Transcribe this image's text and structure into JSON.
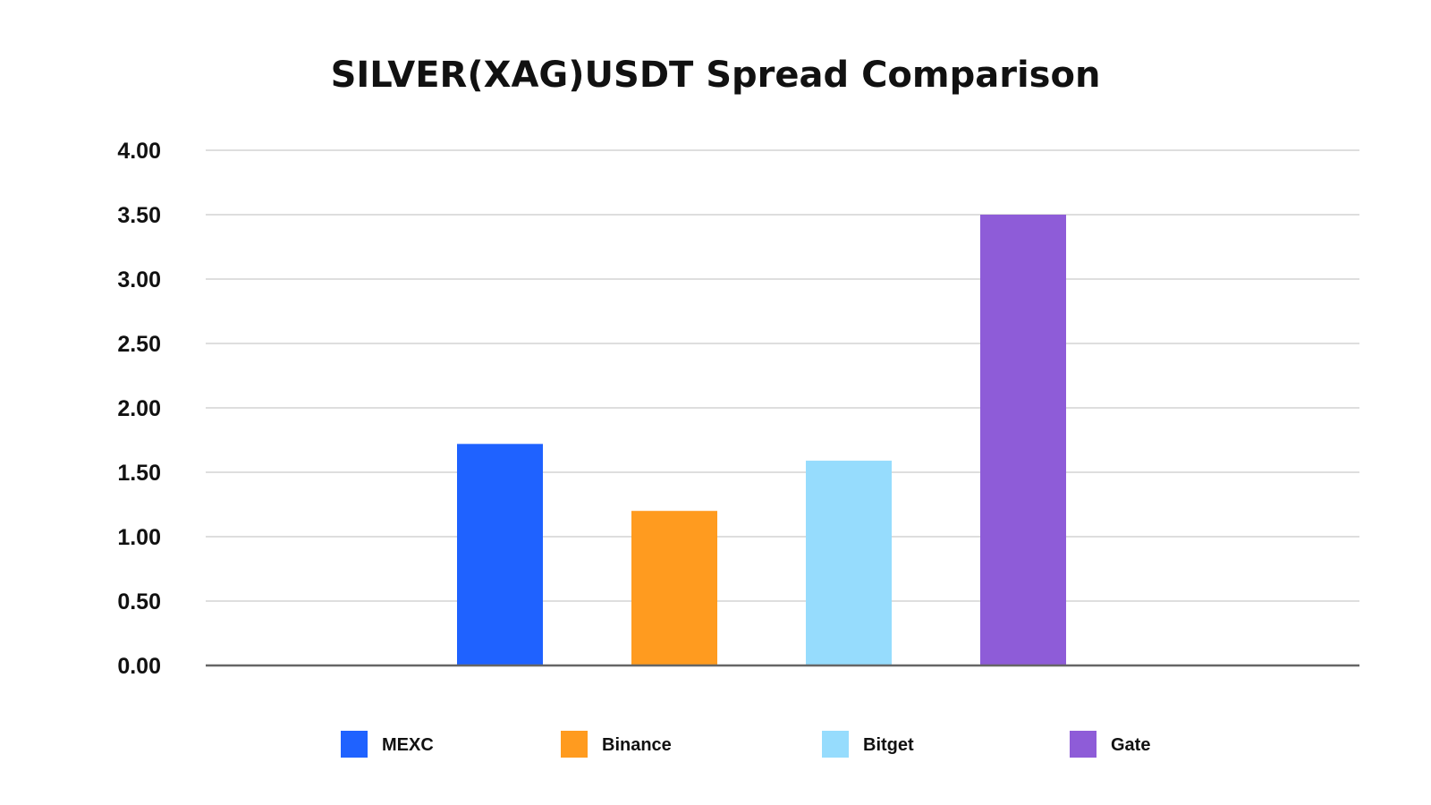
{
  "chart_data": {
    "type": "bar",
    "title": "SILVER(XAG)USDT Spread Comparison",
    "xlabel": "",
    "ylabel": "",
    "ylim": [
      0,
      4
    ],
    "ytick_step": 0.5,
    "ytick_labels": [
      "0.00",
      "0.50",
      "1.00",
      "1.50",
      "2.00",
      "2.50",
      "3.00",
      "3.50",
      "4.00"
    ],
    "grid": true,
    "legend_position": "bottom",
    "series": [
      {
        "name": "MEXC",
        "value": 1.72,
        "color": "#1f62ff"
      },
      {
        "name": "Binance",
        "value": 1.2,
        "color": "#ff9b1f"
      },
      {
        "name": "Bitget",
        "value": 1.59,
        "color": "#96dcfd"
      },
      {
        "name": "Gate",
        "value": 3.5,
        "color": "#8e5cd8"
      }
    ]
  }
}
